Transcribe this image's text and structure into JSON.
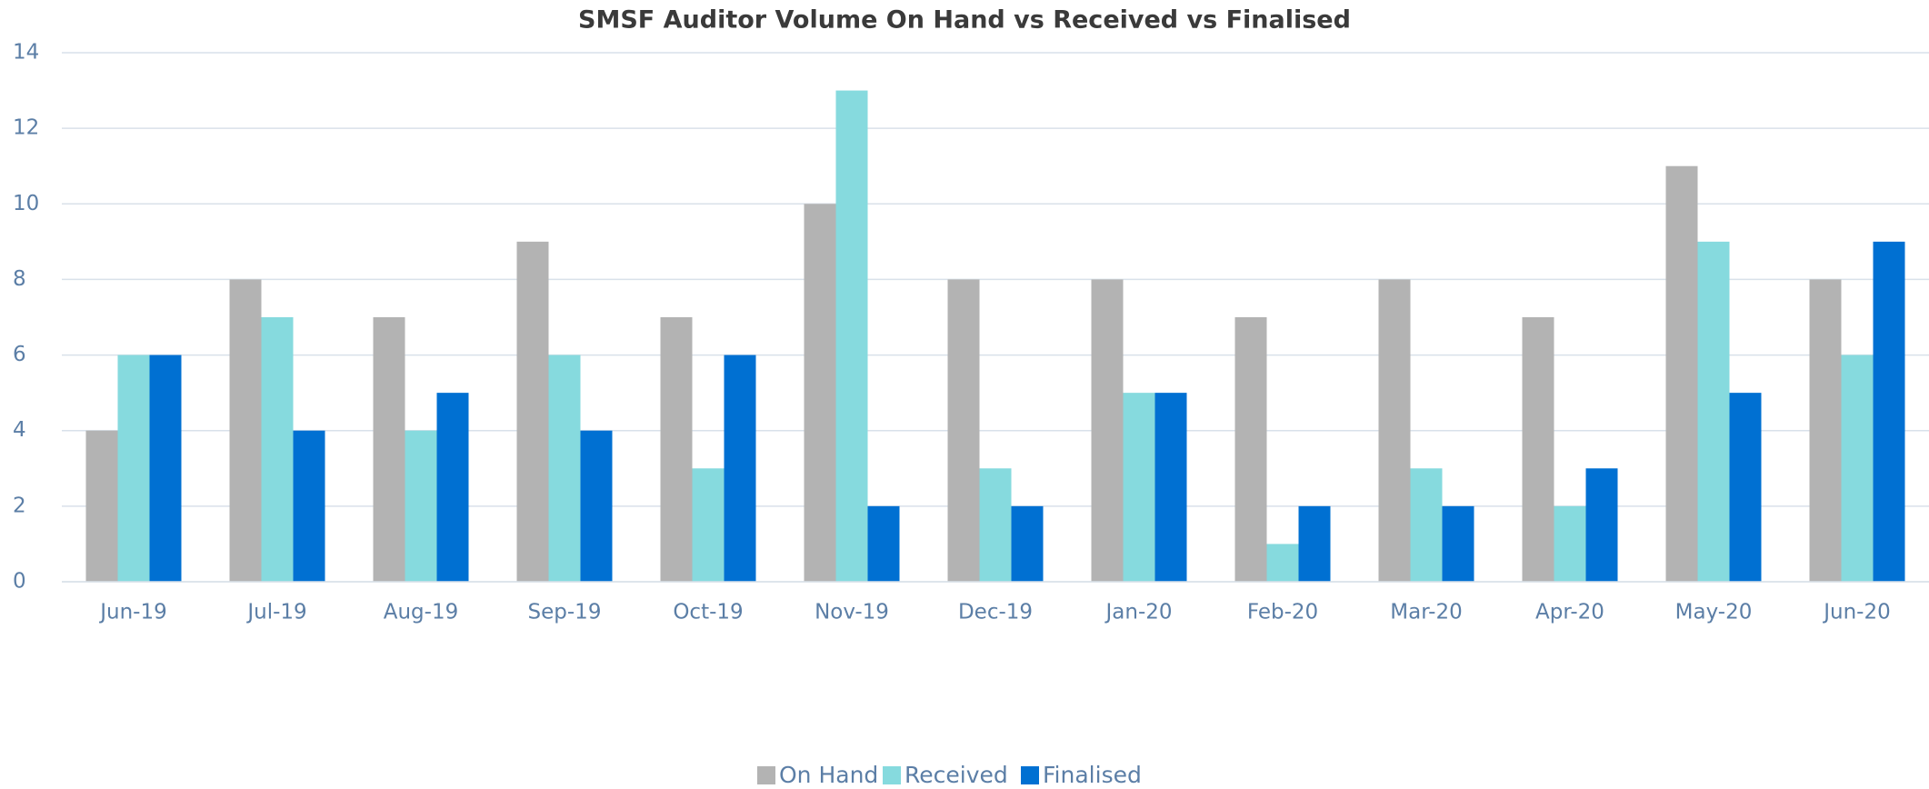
{
  "chart_data": {
    "type": "bar",
    "title": "SMSF Auditor Volume On Hand vs Received vs Finalised",
    "categories": [
      "Jun-19",
      "Jul-19",
      "Aug-19",
      "Sep-19",
      "Oct-19",
      "Nov-19",
      "Dec-19",
      "Jan-20",
      "Feb-20",
      "Mar-20",
      "Apr-20",
      "May-20",
      "Jun-20"
    ],
    "series": [
      {
        "name": "On Hand",
        "color": "#b3b3b3",
        "values": [
          4,
          8,
          7,
          9,
          7,
          10,
          8,
          8,
          7,
          8,
          7,
          11,
          8
        ]
      },
      {
        "name": "Received",
        "color": "#86dade",
        "values": [
          6,
          7,
          4,
          6,
          3,
          13,
          3,
          5,
          1,
          3,
          2,
          9,
          6
        ]
      },
      {
        "name": "Finalised",
        "color": "#0070d2",
        "values": [
          6,
          4,
          5,
          4,
          6,
          2,
          2,
          5,
          2,
          2,
          3,
          5,
          9
        ]
      }
    ],
    "ylim": [
      0,
      14
    ],
    "yticks": [
      0,
      2,
      4,
      6,
      8,
      10,
      12,
      14
    ],
    "grid": true,
    "legend": "bottom"
  }
}
